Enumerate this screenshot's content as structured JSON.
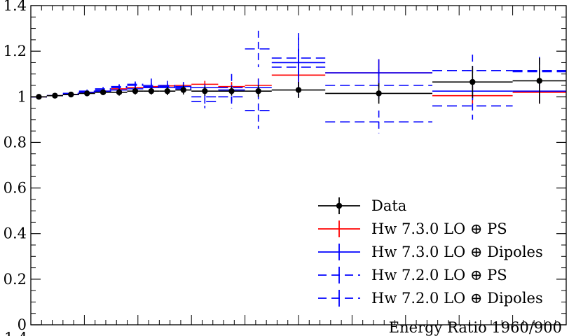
{
  "chart_data": {
    "type": "line",
    "xlabel": "Energy Ratio 1960/900",
    "ylabel": "",
    "x_range": [
      0,
      1
    ],
    "ylim": [
      0,
      1.4
    ],
    "y_ticks": [
      {
        "value": 0,
        "label": "0"
      },
      {
        "value": 0.2,
        "label": "0.2"
      },
      {
        "value": 0.4,
        "label": "0.4"
      },
      {
        "value": 0.6,
        "label": "0.6"
      },
      {
        "value": 0.8,
        "label": "0.8"
      },
      {
        "value": 1.0,
        "label": "1"
      },
      {
        "value": 1.2,
        "label": "1.2"
      },
      {
        "value": 1.4,
        "label": "1.4"
      }
    ],
    "next_panel_top_label": "1.4",
    "legend_position": "bottom-right",
    "grid": false,
    "bin_edges": [
      0,
      0.03,
      0.06,
      0.09,
      0.12,
      0.15,
      0.18,
      0.21,
      0.24,
      0.27,
      0.3,
      0.35,
      0.4,
      0.45,
      0.55,
      0.75,
      0.9,
      1.0
    ],
    "series": [
      {
        "name": "Data",
        "color": "#000000",
        "style": "points",
        "x": [
          0.015,
          0.045,
          0.075,
          0.105,
          0.135,
          0.165,
          0.195,
          0.225,
          0.255,
          0.285,
          0.325,
          0.375,
          0.425,
          0.5,
          0.65,
          0.825,
          0.95
        ],
        "y": [
          1.0,
          1.005,
          1.01,
          1.015,
          1.02,
          1.02,
          1.025,
          1.025,
          1.025,
          1.03,
          1.025,
          1.025,
          1.025,
          1.03,
          1.015,
          1.065,
          1.07
        ],
        "yerr": [
          0.01,
          0.01,
          0.01,
          0.01,
          0.012,
          0.015,
          0.015,
          0.015,
          0.018,
          0.02,
          0.02,
          0.02,
          0.025,
          0.035,
          0.045,
          0.07,
          0.1
        ]
      },
      {
        "name": "Hw 7.3.0 LO ⊕ PS",
        "color": "#ff0000",
        "style": "solid",
        "y": [
          1.0,
          1.005,
          1.01,
          1.018,
          1.025,
          1.035,
          1.04,
          1.045,
          1.048,
          1.05,
          1.055,
          1.045,
          1.05,
          1.095,
          1.105,
          1.005,
          1.02
        ],
        "yerr": [
          0.005,
          0.005,
          0.005,
          0.006,
          0.006,
          0.007,
          0.008,
          0.009,
          0.01,
          0.012,
          0.015,
          0.02,
          0.03,
          0.05,
          0.06,
          0.04,
          0.05
        ]
      },
      {
        "name": "Hw 7.3.0 LO ⊕ Dipoles",
        "color": "#0000ff",
        "style": "solid",
        "y": [
          1.0,
          1.005,
          1.01,
          1.02,
          1.025,
          1.03,
          1.035,
          1.04,
          1.04,
          1.045,
          1.04,
          1.03,
          1.04,
          1.15,
          1.105,
          1.025,
          1.025
        ],
        "yerr": [
          0.005,
          0.005,
          0.005,
          0.006,
          0.006,
          0.007,
          0.008,
          0.009,
          0.01,
          0.012,
          0.015,
          0.02,
          0.04,
          0.06,
          0.06,
          0.04,
          0.05
        ]
      },
      {
        "name": "Hw 7.2.0 LO ⊕ PS",
        "color": "#0000ff",
        "style": "dashed",
        "y": [
          1.0,
          1.005,
          1.015,
          1.02,
          1.03,
          1.04,
          1.05,
          1.045,
          1.05,
          1.04,
          0.98,
          1.04,
          1.21,
          1.17,
          0.89,
          1.115,
          1.115
        ],
        "yerr": [
          0.005,
          0.005,
          0.006,
          0.007,
          0.008,
          0.01,
          0.012,
          0.015,
          0.02,
          0.025,
          0.03,
          0.06,
          0.08,
          0.11,
          0.05,
          0.07,
          0.06
        ]
      },
      {
        "name": "Hw 7.2.0 LO ⊕ Dipoles",
        "color": "#0000ff",
        "style": "dashed",
        "y": [
          1.0,
          1.005,
          1.015,
          1.025,
          1.035,
          1.045,
          1.055,
          1.05,
          1.045,
          1.035,
          1.0,
          1.0,
          0.94,
          1.13,
          1.05,
          0.96,
          1.11
        ],
        "yerr": [
          0.005,
          0.005,
          0.006,
          0.007,
          0.008,
          0.01,
          0.012,
          0.03,
          0.015,
          0.02,
          0.03,
          0.05,
          0.08,
          0.13,
          0.07,
          0.06,
          0.06
        ]
      }
    ]
  }
}
